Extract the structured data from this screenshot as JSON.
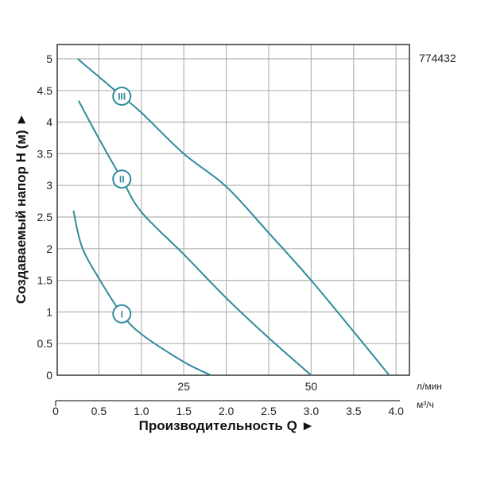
{
  "chart_data": {
    "type": "line",
    "code": "774432",
    "xlabel": "Производительность Q ►",
    "ylabel": "Создаваемый напор H (м) ►",
    "x_unit_primary": "м³/ч",
    "x_unit_secondary": "л/мин",
    "xlim": [
      0,
      4.0
    ],
    "ylim": [
      0,
      5
    ],
    "x_ticks": [
      "0",
      "0.5",
      "1.0",
      "1.5",
      "2.0",
      "2.5",
      "3.0",
      "3.5",
      "4.0"
    ],
    "x_tick_values": [
      0,
      0.5,
      1.0,
      1.5,
      2.0,
      2.5,
      3.0,
      3.5,
      4.0
    ],
    "x_secondary_ticks": [
      {
        "label": "25",
        "q": 1.5
      },
      {
        "label": "50",
        "q": 3.0
      }
    ],
    "y_ticks": [
      "0",
      "0.5",
      "1",
      "1.5",
      "2",
      "2.5",
      "3",
      "3.5",
      "4",
      "4.5",
      "5"
    ],
    "y_tick_values": [
      0,
      0.5,
      1,
      1.5,
      2,
      2.5,
      3,
      3.5,
      4,
      4.5,
      5
    ],
    "grid": true,
    "color": "#2f8b9b",
    "series": [
      {
        "name": "I",
        "label_at": [
          0.77,
          0.97
        ],
        "points": [
          [
            0.2,
            2.6
          ],
          [
            0.3,
            2.03
          ],
          [
            0.5,
            1.53
          ],
          [
            0.77,
            0.97
          ],
          [
            1.0,
            0.65
          ],
          [
            1.5,
            0.21
          ],
          [
            1.82,
            0
          ]
        ]
      },
      {
        "name": "II",
        "label_at": [
          0.77,
          3.1
        ],
        "points": [
          [
            0.26,
            4.34
          ],
          [
            0.5,
            3.74
          ],
          [
            0.77,
            3.1
          ],
          [
            1.0,
            2.58
          ],
          [
            1.5,
            1.91
          ],
          [
            2.0,
            1.22
          ],
          [
            2.5,
            0.59
          ],
          [
            3.0,
            0
          ]
        ]
      },
      {
        "name": "III",
        "label_at": [
          0.77,
          4.41
        ],
        "points": [
          [
            0.25,
            5.0
          ],
          [
            0.77,
            4.41
          ],
          [
            1.0,
            4.15
          ],
          [
            1.5,
            3.5
          ],
          [
            2.0,
            2.98
          ],
          [
            2.5,
            2.25
          ],
          [
            3.0,
            1.5
          ],
          [
            3.5,
            0.69
          ],
          [
            3.92,
            0
          ]
        ]
      }
    ]
  }
}
